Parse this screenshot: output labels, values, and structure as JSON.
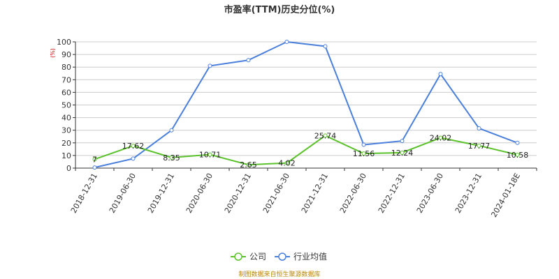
{
  "chart_data": {
    "type": "line",
    "title": "市盈率(TTM)历史分位(%)",
    "yunit": "(%)",
    "categories": [
      "2018-12-31",
      "2019-06-30",
      "2019-12-31",
      "2020-06-30",
      "2020-12-31",
      "2021-06-30",
      "2021-12-31",
      "2022-06-30",
      "2022-12-31",
      "2023-06-30",
      "2023-12-31",
      "2024-01-18E"
    ],
    "ylim": [
      0,
      100
    ],
    "yticks": [
      0,
      10,
      20,
      30,
      40,
      50,
      60,
      70,
      80,
      90,
      100
    ],
    "grid": true,
    "legend_position": "bottom-center",
    "series": [
      {
        "name": "公司",
        "color": "#5cc22c",
        "values": [
          7,
          17.62,
          8.35,
          10.71,
          2.65,
          4.02,
          25.74,
          11.56,
          12.24,
          24.02,
          17.77,
          10.58
        ],
        "labels": [
          "7",
          "17.62",
          "8.35",
          "10.71",
          "2.65",
          "4.02",
          "25.74",
          "11.56",
          "12.24",
          "24.02",
          "17.77",
          "10.58"
        ]
      },
      {
        "name": "行业均值",
        "color": "#4a7fdc",
        "values": [
          0.5,
          7.5,
          30,
          81,
          85.5,
          100,
          96.5,
          18.5,
          21.5,
          74.5,
          31.5,
          20
        ]
      }
    ]
  },
  "footer": {
    "source": "制图数据来自恒生聚源数据库"
  }
}
